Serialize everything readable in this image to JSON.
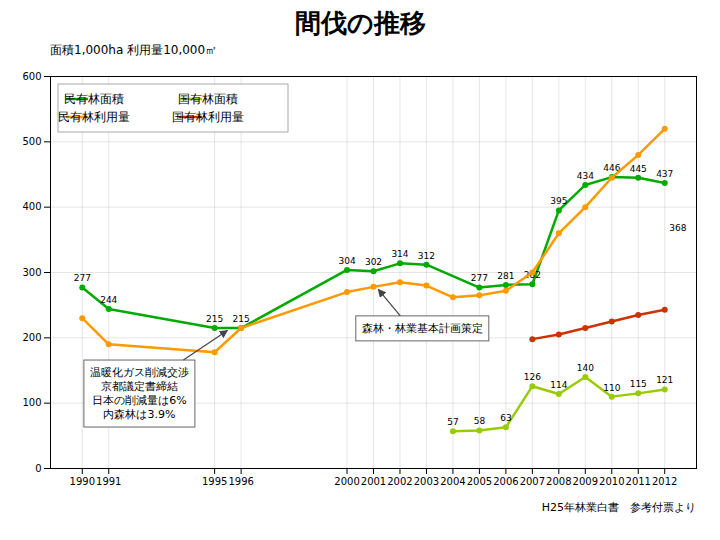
{
  "chart_data": {
    "type": "line",
    "title": "間伐の推移",
    "subtitle": "面積1,000ha   利用量10,000㎥",
    "caption": "H25年林業白書　参考付票より",
    "x": [
      1990,
      1991,
      1995,
      1996,
      2000,
      2001,
      2002,
      2003,
      2004,
      2005,
      2006,
      2007,
      2008,
      2009,
      2010,
      2011,
      2012
    ],
    "series": [
      {
        "name": "民有林面積",
        "color": "#00aa00",
        "marker": "circle",
        "data_labels": true,
        "values": [
          277,
          244,
          215,
          215,
          304,
          302,
          314,
          312,
          null,
          277,
          281,
          282,
          395,
          434,
          446,
          445,
          437
        ]
      },
      {
        "name": "国有林面積",
        "color": "#99cc00",
        "marker": "circle",
        "data_labels": true,
        "values": [
          null,
          null,
          null,
          null,
          null,
          null,
          null,
          null,
          57,
          58,
          63,
          126,
          114,
          140,
          110,
          115,
          121
        ]
      },
      {
        "name": "民有林利用量",
        "color": "#ff9900",
        "marker": "circle",
        "data_labels": false,
        "values": [
          230,
          190,
          178,
          215,
          270,
          278,
          285,
          280,
          262,
          265,
          272,
          300,
          360,
          400,
          445,
          480,
          520
        ]
      },
      {
        "name": "国有林利用量",
        "color": "#cc3300",
        "marker": "circle",
        "data_labels": false,
        "values": [
          null,
          null,
          null,
          null,
          null,
          null,
          null,
          null,
          null,
          null,
          null,
          198,
          205,
          215,
          225,
          235,
          243
        ]
      }
    ],
    "xlim": [
      1988.8,
      2013.2
    ],
    "xticks": [
      1990,
      1991,
      1995,
      1996,
      2000,
      2001,
      2002,
      2003,
      2004,
      2005,
      2006,
      2007,
      2008,
      2009,
      2010,
      2011,
      2012
    ],
    "ylim": [
      0,
      600
    ],
    "yticks": [
      0,
      100,
      200,
      300,
      400,
      500,
      600
    ],
    "grid": true,
    "legend": "upper left",
    "annotations": [
      {
        "text": "温暖化ガス削減交渉\n京都議定書締結\n日本の削減量は6%\n内森林は3.9%",
        "x": 1995.5,
        "y": 215,
        "arrow": true
      },
      {
        "text": "森林・林業基本計画策定",
        "x": 2001.2,
        "y": 278,
        "arrow": true
      },
      {
        "text": "368",
        "x": 2012,
        "y": 368,
        "arrow": false
      }
    ]
  }
}
